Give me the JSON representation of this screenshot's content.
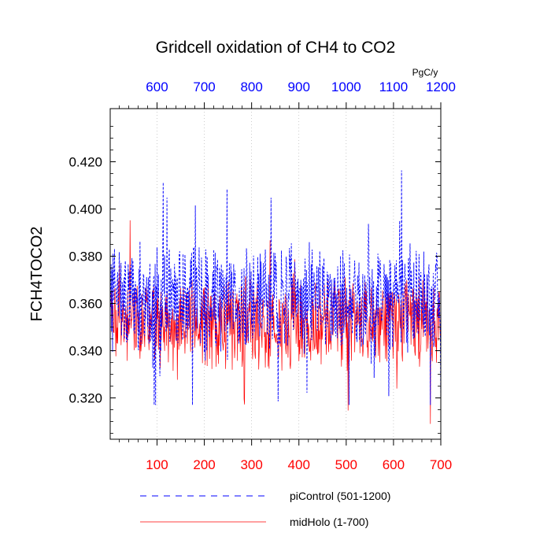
{
  "chart_data": {
    "type": "line",
    "title": "Gridcell oxidation of CH4 to CO2",
    "ylabel": "FCH4TOCO2",
    "xlabel_bottom": "",
    "top_axis_units": "PgC/y",
    "ylim": [
      0.3025,
      0.4425
    ],
    "bottom_axis": {
      "range": [
        1,
        700
      ],
      "ticks": [
        100,
        200,
        300,
        400,
        500,
        600,
        700
      ],
      "tick_labels": [
        "100",
        "200",
        "300",
        "400",
        "500",
        "600",
        "700"
      ],
      "color": "#ff0000"
    },
    "top_axis": {
      "range": [
        501,
        1200
      ],
      "ticks": [
        600,
        700,
        800,
        900,
        1000,
        1100,
        1200
      ],
      "tick_labels": [
        "600",
        "700",
        "800",
        "900",
        "1000",
        "1100",
        "1200"
      ],
      "color": "#0000ff"
    },
    "y_ticks": [
      0.32,
      0.34,
      0.36,
      0.38,
      0.4,
      0.42
    ],
    "y_tick_labels": [
      "0.320",
      "0.340",
      "0.360",
      "0.380",
      "0.400",
      "0.420"
    ],
    "series": [
      {
        "name": "piControl (501-1200)",
        "color": "#0000ff",
        "style": "dashed",
        "axis": "top",
        "mean": 0.362,
        "amplitude": 0.018,
        "min": 0.317,
        "max": 0.418,
        "seed": 7
      },
      {
        "name": "midHolo (1-700)",
        "color": "#ff0000",
        "style": "solid",
        "axis": "bottom",
        "mean": 0.352,
        "amplitude": 0.016,
        "min": 0.309,
        "max": 0.396,
        "seed": 3
      }
    ]
  }
}
